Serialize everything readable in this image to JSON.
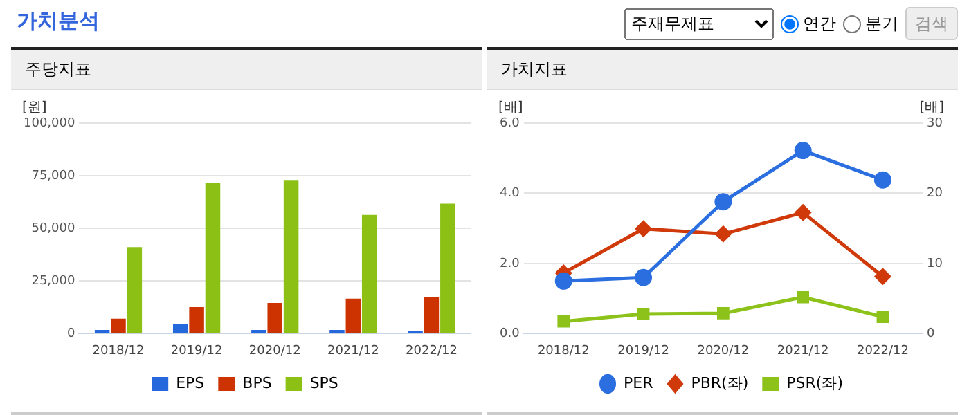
{
  "chart_data": [
    {
      "type": "other",
      "title": "가치분석",
      "annotations": [
        "주재무제표",
        "연간",
        "분기",
        "검색"
      ]
    },
    {
      "type": "bar",
      "title": "주당지표",
      "ylabel": "[원]",
      "categories": [
        "2018/12",
        "2019/12",
        "2020/12",
        "2021/12",
        "2022/12"
      ],
      "series": [
        {
          "name": "EPS",
          "color": "#2468dc",
          "values": [
            1800,
            4600,
            1800,
            1800,
            1100
          ]
        },
        {
          "name": "BPS",
          "color": "#cc3300",
          "values": [
            7100,
            12600,
            14600,
            16600,
            17200
          ]
        },
        {
          "name": "SPS",
          "color": "#8cc014",
          "values": [
            41100,
            71700,
            73000,
            56400,
            61700
          ]
        }
      ],
      "ylim": [
        0,
        100000
      ],
      "yticks": [
        {
          "value": 0,
          "label": "0"
        },
        {
          "value": 25000,
          "label": "25,000"
        },
        {
          "value": 50000,
          "label": "50,000"
        },
        {
          "value": 75000,
          "label": "75,000"
        },
        {
          "value": 100000,
          "label": "100,000"
        }
      ],
      "grid": "y",
      "legend": "bottom"
    },
    {
      "type": "line",
      "title": "가치지표",
      "ylabel": "[배]",
      "y2label": "[배]",
      "categories": [
        "2018/12",
        "2019/12",
        "2020/12",
        "2021/12",
        "2022/12"
      ],
      "series": [
        {
          "name": "PER",
          "color": "#2a6ee0",
          "axis": "y2",
          "marker": "circle",
          "values": [
            7.5,
            8.0,
            18.8,
            26.1,
            21.9
          ]
        },
        {
          "name": "PBR(좌)",
          "color": "#d03a0a",
          "marker": "diamond",
          "values": [
            1.73,
            2.99,
            2.84,
            3.45,
            1.63
          ]
        },
        {
          "name": "PSR(좌)",
          "color": "#8cc21a",
          "marker": "square",
          "values": [
            0.35,
            0.56,
            0.58,
            1.04,
            0.48
          ]
        }
      ],
      "ylim": [
        0,
        6
      ],
      "yticks": [
        {
          "value": 0,
          "label": "0.0"
        },
        {
          "value": 2,
          "label": "2.0"
        },
        {
          "value": 4,
          "label": "4.0"
        },
        {
          "value": 6,
          "label": "6.0"
        }
      ],
      "y2lim": [
        0,
        30
      ],
      "y2ticks": [
        0,
        10,
        20,
        30
      ],
      "grid": "y",
      "legend": "bottom"
    }
  ]
}
